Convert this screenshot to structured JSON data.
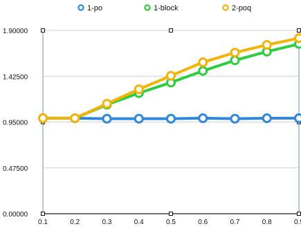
{
  "chart_data": {
    "type": "line",
    "title": "",
    "xlabel": "",
    "ylabel": "",
    "legend_position": "top",
    "grid": true,
    "x": [
      0.1,
      0.2,
      0.3,
      0.4,
      0.5,
      0.6,
      0.7,
      0.8,
      0.9
    ],
    "x_tick_labels": [
      "0.1",
      "0.2",
      "0.3",
      "0.4",
      "0.5",
      "0.6",
      "0.7",
      "0.8",
      "0.9"
    ],
    "xlim": [
      0.1,
      0.9
    ],
    "y_ticks": [
      0,
      0.475,
      0.95,
      1.425,
      1.9
    ],
    "y_tick_labels": [
      "0.00000",
      "0.47500",
      "0.95000",
      "1.42500",
      "1.90000"
    ],
    "ylim": [
      0,
      1.9
    ],
    "series": [
      {
        "name": "1-po",
        "color": "#2e86de",
        "values": [
          0.99,
          0.99,
          0.985,
          0.985,
          0.985,
          0.99,
          0.985,
          0.99,
          0.99
        ]
      },
      {
        "name": "1-block",
        "color": "#2ecc40",
        "values": [
          0.99,
          0.99,
          1.13,
          1.25,
          1.36,
          1.48,
          1.59,
          1.68,
          1.76
        ]
      },
      {
        "name": "2-poq",
        "color": "#f5b301",
        "values": [
          0.99,
          0.99,
          1.14,
          1.29,
          1.43,
          1.57,
          1.67,
          1.75,
          1.82
        ]
      }
    ]
  }
}
